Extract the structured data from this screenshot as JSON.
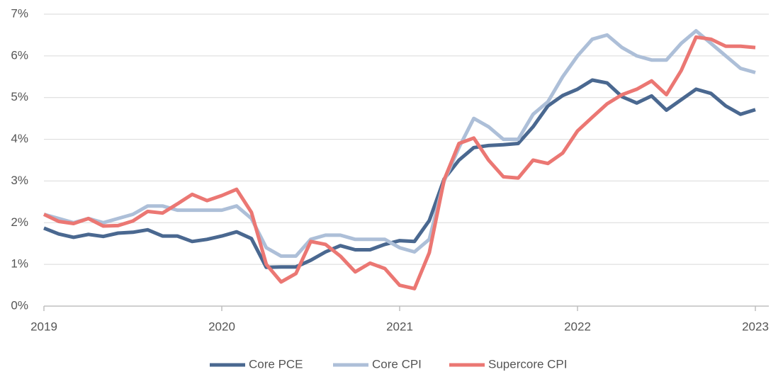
{
  "chart_data": {
    "type": "line",
    "categories": [
      "2019",
      null,
      null,
      null,
      null,
      null,
      null,
      null,
      null,
      null,
      null,
      null,
      "2020",
      null,
      null,
      null,
      null,
      null,
      null,
      null,
      null,
      null,
      null,
      null,
      "2021",
      null,
      null,
      null,
      null,
      null,
      null,
      null,
      null,
      null,
      null,
      null,
      "2022",
      null,
      null,
      null,
      null,
      null,
      null,
      null,
      null,
      null,
      null,
      null,
      "2023"
    ],
    "series": [
      {
        "name": "Core PCE",
        "color": "#4a6890",
        "values": [
          1.87,
          1.73,
          1.65,
          1.72,
          1.67,
          1.75,
          1.77,
          1.83,
          1.68,
          1.68,
          1.55,
          1.6,
          1.68,
          1.78,
          1.62,
          0.93,
          0.94,
          0.94,
          1.1,
          1.3,
          1.45,
          1.35,
          1.35,
          1.48,
          1.57,
          1.55,
          2.05,
          3.05,
          3.5,
          3.8,
          3.85,
          3.87,
          3.9,
          4.3,
          4.8,
          5.05,
          5.2,
          5.42,
          5.35,
          5.02,
          4.87,
          5.04,
          4.7,
          4.95,
          5.2,
          5.1,
          4.8,
          4.6,
          4.71
        ]
      },
      {
        "name": "Core CPI",
        "color": "#adbfd8",
        "values": [
          2.2,
          2.1,
          2.0,
          2.1,
          2.0,
          2.1,
          2.2,
          2.4,
          2.4,
          2.3,
          2.3,
          2.3,
          2.3,
          2.4,
          2.1,
          1.4,
          1.2,
          1.2,
          1.6,
          1.7,
          1.7,
          1.6,
          1.6,
          1.6,
          1.4,
          1.3,
          1.6,
          3.0,
          3.8,
          4.5,
          4.3,
          4.0,
          4.0,
          4.6,
          4.9,
          5.5,
          6.0,
          6.4,
          6.5,
          6.2,
          6.0,
          5.9,
          5.9,
          6.3,
          6.6,
          6.3,
          6.0,
          5.7,
          5.6
        ]
      },
      {
        "name": "Supercore CPI",
        "color": "#eb7773",
        "values": [
          2.2,
          2.03,
          1.98,
          2.1,
          1.92,
          1.93,
          2.04,
          2.27,
          2.23,
          2.45,
          2.68,
          2.53,
          2.65,
          2.8,
          2.25,
          1.0,
          0.58,
          0.78,
          1.55,
          1.48,
          1.2,
          0.82,
          1.03,
          0.9,
          0.5,
          0.42,
          1.28,
          3.03,
          3.9,
          4.03,
          3.5,
          3.1,
          3.07,
          3.5,
          3.42,
          3.67,
          4.2,
          4.53,
          4.85,
          5.07,
          5.2,
          5.4,
          5.07,
          5.65,
          6.45,
          6.4,
          6.23,
          6.23,
          6.2
        ]
      }
    ],
    "ylim": [
      0,
      7
    ],
    "yticks": [
      {
        "value": 0,
        "label": "0%"
      },
      {
        "value": 1,
        "label": "1%"
      },
      {
        "value": 2,
        "label": "2%"
      },
      {
        "value": 3,
        "label": "3%"
      },
      {
        "value": 4,
        "label": "4%"
      },
      {
        "value": 5,
        "label": "5%"
      },
      {
        "value": 6,
        "label": "6%"
      },
      {
        "value": 7,
        "label": "7%"
      }
    ],
    "grid": true,
    "legend": "bottom"
  }
}
